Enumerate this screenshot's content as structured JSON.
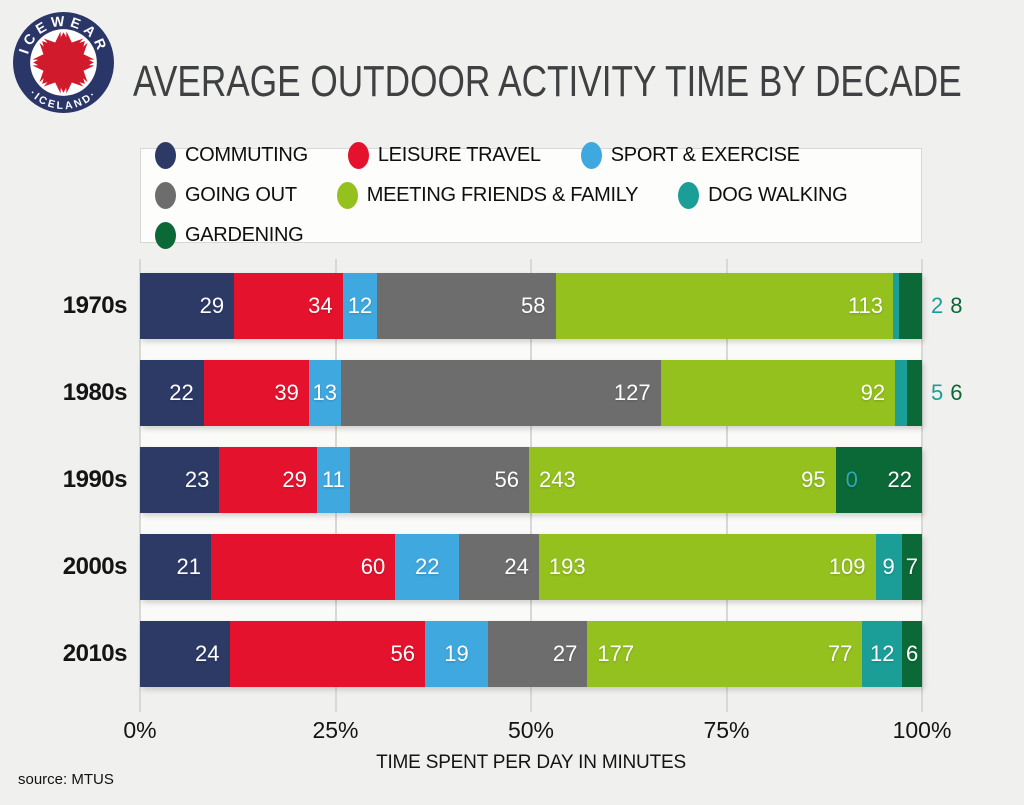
{
  "logo": {
    "top": "ICEWEAR",
    "bottom": "·ICELAND·"
  },
  "title": "AVERAGE OUTDOOR ACTIVITY TIME BY DECADE",
  "source": "source: MTUS",
  "axis": {
    "ticks": [
      {
        "label": "0%",
        "pct": 0
      },
      {
        "label": "25%",
        "pct": 25
      },
      {
        "label": "50%",
        "pct": 50
      },
      {
        "label": "75%",
        "pct": 75
      },
      {
        "label": "100%",
        "pct": 100
      }
    ],
    "xlabel": "TIME SPENT PER DAY IN MINUTES"
  },
  "colors": {
    "commuting": "#2d3a66",
    "leisure_travel": "#e5122d",
    "sport_exercise": "#3fa8df",
    "going_out": "#6d6d6d",
    "meeting_friends_family": "#94c11e",
    "dog_walking": "#1b9e98",
    "gardening": "#0b6837",
    "zero_label": "#2fa9b0",
    "grid": "#d8d8d5",
    "page_bg": "#f0f0ee",
    "logo_navy": "#2b3668",
    "logo_red": "#d11a2b"
  },
  "legend": [
    {
      "series": "commuting",
      "label": "COMMUTING"
    },
    {
      "series": "leisure_travel",
      "label": "LEISURE TRAVEL"
    },
    {
      "series": "sport_exercise",
      "label": "SPORT & EXERCISE"
    },
    {
      "series": "going_out",
      "label": "GOING OUT"
    },
    {
      "series": "meeting_friends_family",
      "label": "MEETING FRIENDS & FAMILY"
    },
    {
      "series": "dog_walking",
      "label": "DOG WALKING"
    },
    {
      "series": "gardening",
      "label": "GARDENING"
    }
  ],
  "chart_data": {
    "type": "bar",
    "stacked": true,
    "orientation": "horizontal",
    "title": "AVERAGE OUTDOOR ACTIVITY TIME BY DECADE",
    "xlabel": "TIME SPENT PER DAY IN MINUTES",
    "x_ticks": [
      "0%",
      "25%",
      "50%",
      "75%",
      "100%"
    ],
    "units": "minutes per day",
    "legend_position": "top",
    "grid": "vertical-light",
    "categories": [
      "1970s",
      "1980s",
      "1990s",
      "2000s",
      "2010s"
    ],
    "series": [
      {
        "name": "COMMUTING",
        "color": "#2d3a66",
        "values": [
          29,
          22,
          23,
          21,
          24
        ]
      },
      {
        "name": "LEISURE TRAVEL",
        "color": "#e5122d",
        "values": [
          34,
          39,
          29,
          60,
          56
        ]
      },
      {
        "name": "SPORT & EXERCISE",
        "color": "#3fa8df",
        "values": [
          12,
          13,
          11,
          22,
          19
        ]
      },
      {
        "name": "GOING OUT",
        "color": "#6d6d6d",
        "values": [
          58,
          127,
          56,
          24,
          27
        ]
      },
      {
        "name": "MEETING FRIENDS & FAMILY",
        "color": "#94c11e",
        "values": [
          113,
          92,
          95,
          109,
          77
        ],
        "secondary_labels": [
          null,
          null,
          "243",
          "193",
          "177"
        ]
      },
      {
        "name": "DOG WALKING",
        "color": "#1b9e98",
        "values": [
          2,
          5,
          0,
          9,
          12
        ]
      },
      {
        "name": "GARDENING",
        "color": "#0b6837",
        "values": [
          8,
          6,
          22,
          7,
          6
        ]
      }
    ]
  },
  "rows": [
    {
      "decade": "1970s",
      "segments": [
        {
          "series": "commuting",
          "value": 29,
          "labels": [
            {
              "text": "29",
              "align": "right"
            }
          ]
        },
        {
          "series": "leisure_travel",
          "value": 34,
          "labels": [
            {
              "text": "34",
              "align": "right"
            }
          ]
        },
        {
          "series": "sport_exercise",
          "value": 12,
          "labels": [
            {
              "text": "12",
              "align": "center"
            }
          ]
        },
        {
          "series": "going_out",
          "value": 58,
          "labels": [
            {
              "text": "58",
              "align": "right"
            }
          ]
        },
        {
          "series": "meeting_friends_family",
          "value": 113,
          "labels": [
            {
              "text": "113",
              "align": "right"
            }
          ]
        },
        {
          "series": "dog_walking",
          "value": 2,
          "labels": []
        },
        {
          "series": "gardening",
          "value": 8,
          "labels": []
        }
      ],
      "outside_labels": [
        {
          "text": "2",
          "series": "dog_walking"
        },
        {
          "text": "8",
          "series": "gardening"
        }
      ]
    },
    {
      "decade": "1980s",
      "segments": [
        {
          "series": "commuting",
          "value": 22,
          "labels": [
            {
              "text": "22",
              "align": "right"
            }
          ]
        },
        {
          "series": "leisure_travel",
          "value": 39,
          "labels": [
            {
              "text": "39",
              "align": "right"
            }
          ]
        },
        {
          "series": "sport_exercise",
          "value": 13,
          "labels": [
            {
              "text": "13",
              "align": "center"
            }
          ]
        },
        {
          "series": "going_out",
          "value": 127,
          "labels": [
            {
              "text": "127",
              "align": "right"
            }
          ]
        },
        {
          "series": "meeting_friends_family",
          "value": 92,
          "labels": [
            {
              "text": "92",
              "align": "right"
            }
          ]
        },
        {
          "series": "dog_walking",
          "value": 5,
          "labels": []
        },
        {
          "series": "gardening",
          "value": 6,
          "labels": []
        }
      ],
      "outside_labels": [
        {
          "text": "5",
          "series": "dog_walking"
        },
        {
          "text": "6",
          "series": "gardening"
        }
      ]
    },
    {
      "decade": "1990s",
      "segments": [
        {
          "series": "commuting",
          "value": 23,
          "labels": [
            {
              "text": "23",
              "align": "right"
            }
          ]
        },
        {
          "series": "leisure_travel",
          "value": 29,
          "labels": [
            {
              "text": "29",
              "align": "right"
            }
          ]
        },
        {
          "series": "sport_exercise",
          "value": 11,
          "labels": [
            {
              "text": "11",
              "align": "center"
            }
          ]
        },
        {
          "series": "going_out",
          "value": 56,
          "labels": [
            {
              "text": "56",
              "align": "right"
            }
          ]
        },
        {
          "series": "meeting_friends_family",
          "value": 95,
          "labels": [
            {
              "text": "243",
              "align": "left"
            },
            {
              "text": "95",
              "align": "right"
            }
          ]
        },
        {
          "series": "dog_walking",
          "value": 0,
          "labels": []
        },
        {
          "series": "gardening",
          "value": 22,
          "labels": [
            {
              "text": "0",
              "align": "left",
              "color": "#2fa9b0"
            },
            {
              "text": "22",
              "align": "right"
            }
          ]
        }
      ],
      "outside_labels": []
    },
    {
      "decade": "2000s",
      "segments": [
        {
          "series": "commuting",
          "value": 21,
          "labels": [
            {
              "text": "21",
              "align": "right"
            }
          ]
        },
        {
          "series": "leisure_travel",
          "value": 60,
          "labels": [
            {
              "text": "60",
              "align": "right"
            }
          ]
        },
        {
          "series": "sport_exercise",
          "value": 22,
          "labels": [
            {
              "text": "22",
              "align": "center"
            }
          ]
        },
        {
          "series": "going_out",
          "value": 24,
          "labels": [
            {
              "text": "24",
              "align": "right"
            }
          ]
        },
        {
          "series": "meeting_friends_family",
          "value": 109,
          "labels": [
            {
              "text": "193",
              "align": "left"
            },
            {
              "text": "109",
              "align": "right"
            }
          ]
        },
        {
          "series": "dog_walking",
          "value": 9,
          "labels": [
            {
              "text": "9",
              "align": "center"
            }
          ]
        },
        {
          "series": "gardening",
          "value": 7,
          "labels": [
            {
              "text": "7",
              "align": "center"
            }
          ]
        }
      ],
      "outside_labels": []
    },
    {
      "decade": "2010s",
      "segments": [
        {
          "series": "commuting",
          "value": 24,
          "labels": [
            {
              "text": "24",
              "align": "right"
            }
          ]
        },
        {
          "series": "leisure_travel",
          "value": 56,
          "labels": [
            {
              "text": "56",
              "align": "right"
            }
          ]
        },
        {
          "series": "sport_exercise",
          "value": 19,
          "labels": [
            {
              "text": "19",
              "align": "center"
            }
          ]
        },
        {
          "series": "going_out",
          "value": 27,
          "labels": [
            {
              "text": "27",
              "align": "right"
            }
          ]
        },
        {
          "series": "meeting_friends_family",
          "value": 77,
          "labels": [
            {
              "text": "177",
              "align": "left"
            },
            {
              "text": "77",
              "align": "right"
            }
          ]
        },
        {
          "series": "dog_walking",
          "value": 12,
          "labels": [
            {
              "text": "12",
              "align": "center"
            }
          ]
        },
        {
          "series": "gardening",
          "value": 6,
          "labels": [
            {
              "text": "6",
              "align": "center"
            }
          ]
        }
      ],
      "outside_labels": []
    }
  ]
}
